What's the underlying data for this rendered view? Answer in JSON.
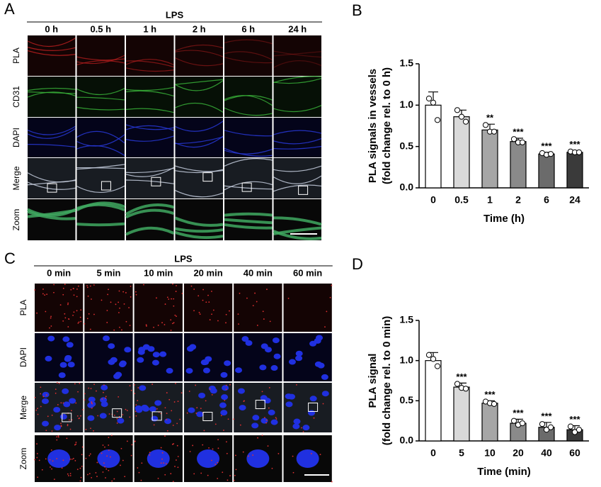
{
  "panels": [
    {
      "label": "A",
      "header": "LPS",
      "columns": [
        "0 h",
        "0.5 h",
        "1 h",
        "2 h",
        "6 h",
        "24 h"
      ],
      "rows": [
        "PLA",
        "CD31",
        "DAPI",
        "Merge",
        "Zoom"
      ]
    },
    {
      "label": "C",
      "header": "LPS",
      "columns": [
        "0 min",
        "5 min",
        "10 min",
        "20 min",
        "40 min",
        "60 min"
      ],
      "rows": [
        "PLA",
        "DAPI",
        "Merge",
        "Zoom"
      ]
    }
  ],
  "chart_data": [
    {
      "type": "bar",
      "label": "B",
      "ylabel": [
        "PLA signals in vessels",
        "(fold change rel. to 0 h)"
      ],
      "xlabel": "Time (h)",
      "categories": [
        "0",
        "0.5",
        "1",
        "2",
        "6",
        "24"
      ],
      "values": [
        1.0,
        0.86,
        0.7,
        0.56,
        0.41,
        0.43
      ],
      "errors": [
        0.16,
        0.08,
        0.07,
        0.04,
        0.02,
        0.02
      ],
      "points": [
        [
          1.08,
          1.03,
          0.82
        ],
        [
          0.94,
          0.86,
          0.8
        ],
        [
          0.76,
          0.68,
          0.68
        ],
        [
          0.59,
          0.55,
          0.55
        ],
        [
          0.42,
          0.4,
          0.41
        ],
        [
          0.44,
          0.43,
          0.43
        ]
      ],
      "significance": [
        null,
        null,
        "**",
        "***",
        "***",
        "***"
      ],
      "colors": [
        "#ffffff",
        "#d9d9d9",
        "#a6a6a6",
        "#8a8a8a",
        "#6b6b6b",
        "#3a3a3a"
      ],
      "ylim": [
        0,
        1.5
      ],
      "yticks": [
        {
          "value": 0,
          "label": "0.0"
        },
        {
          "value": 0.5,
          "label": "0.5"
        },
        {
          "value": 1,
          "label": "1.0"
        },
        {
          "value": 1.5,
          "label": "1.5"
        }
      ]
    },
    {
      "type": "bar",
      "label": "D",
      "ylabel": [
        "PLA signal",
        "(fold change rel. to 0 min)"
      ],
      "xlabel": "Time (min)",
      "categories": [
        "0",
        "5",
        "10",
        "20",
        "40",
        "60"
      ],
      "values": [
        1.0,
        0.67,
        0.47,
        0.22,
        0.17,
        0.14
      ],
      "errors": [
        0.1,
        0.05,
        0.03,
        0.05,
        0.06,
        0.05
      ],
      "points": [
        [
          1.07,
          1.02,
          0.93
        ],
        [
          0.71,
          0.66,
          0.65
        ],
        [
          0.49,
          0.47,
          0.46
        ],
        [
          0.25,
          0.2,
          0.22
        ],
        [
          0.21,
          0.14,
          0.17
        ],
        [
          0.18,
          0.11,
          0.14
        ]
      ],
      "significance": [
        null,
        "***",
        "***",
        "***",
        "***",
        "***"
      ],
      "colors": [
        "#ffffff",
        "#d9d9d9",
        "#a6a6a6",
        "#8a8a8a",
        "#6b6b6b",
        "#3a3a3a"
      ],
      "ylim": [
        0,
        1.5
      ],
      "yticks": [
        {
          "value": 0,
          "label": "0.0"
        },
        {
          "value": 0.5,
          "label": "0.5"
        },
        {
          "value": 1,
          "label": "1.0"
        },
        {
          "value": 1.5,
          "label": "1.5"
        }
      ]
    }
  ]
}
